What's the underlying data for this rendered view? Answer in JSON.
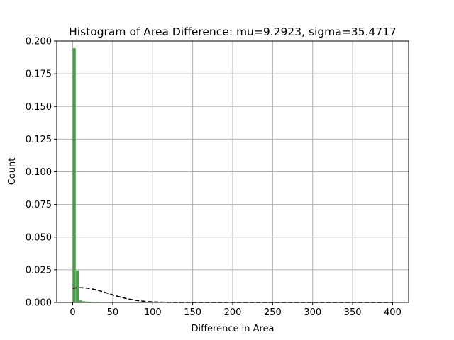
{
  "chart_data": {
    "type": "bar",
    "title": "Histogram of Area Difference: mu=9.2923, sigma=35.4717",
    "xlabel": "Difference in Area",
    "ylabel": "Count",
    "xlim": [
      -20,
      420
    ],
    "ylim": [
      0,
      0.2
    ],
    "grid": true,
    "bar_color": "#4a9e4a",
    "x_ticks": [
      0,
      50,
      100,
      150,
      200,
      250,
      300,
      350,
      400
    ],
    "x_tick_labels": [
      "0",
      "50",
      "100",
      "150",
      "200",
      "250",
      "300",
      "350",
      "400"
    ],
    "y_ticks": [
      0,
      0.025,
      0.05,
      0.075,
      0.1,
      0.125,
      0.15,
      0.175,
      0.2
    ],
    "y_tick_labels": [
      "0.000",
      "0.025",
      "0.050",
      "0.075",
      "0.100",
      "0.125",
      "0.150",
      "0.175",
      "0.200"
    ],
    "bins": [
      {
        "x0": 0,
        "x1": 4,
        "value": 0.1945
      },
      {
        "x0": 4,
        "x1": 8,
        "value": 0.0245
      },
      {
        "x0": 8,
        "x1": 12,
        "value": 0.0015
      },
      {
        "x0": 12,
        "x1": 16,
        "value": 0.0009
      },
      {
        "x0": 16,
        "x1": 20,
        "value": 0.0007
      },
      {
        "x0": 20,
        "x1": 24,
        "value": 0.0006
      },
      {
        "x0": 24,
        "x1": 28,
        "value": 0.0005
      },
      {
        "x0": 28,
        "x1": 32,
        "value": 0.0004
      },
      {
        "x0": 32,
        "x1": 36,
        "value": 0.0003
      },
      {
        "x0": 36,
        "x1": 40,
        "value": 0.0002
      },
      {
        "x0": 40,
        "x1": 44,
        "value": 0.00015
      },
      {
        "x0": 44,
        "x1": 48,
        "value": 0.0001
      },
      {
        "x0": 48,
        "x1": 52,
        "value": 0.0001
      },
      {
        "x0": 52,
        "x1": 56,
        "value": 8e-05
      },
      {
        "x0": 56,
        "x1": 60,
        "value": 6e-05
      },
      {
        "x0": 60,
        "x1": 64,
        "value": 5e-05
      },
      {
        "x0": 64,
        "x1": 68,
        "value": 4e-05
      }
    ],
    "series": [
      {
        "type": "normal-pdf-dashed",
        "mu": 9.2923,
        "sigma": 35.4717,
        "x_range": [
          0,
          400
        ],
        "color": "#000000"
      }
    ]
  }
}
